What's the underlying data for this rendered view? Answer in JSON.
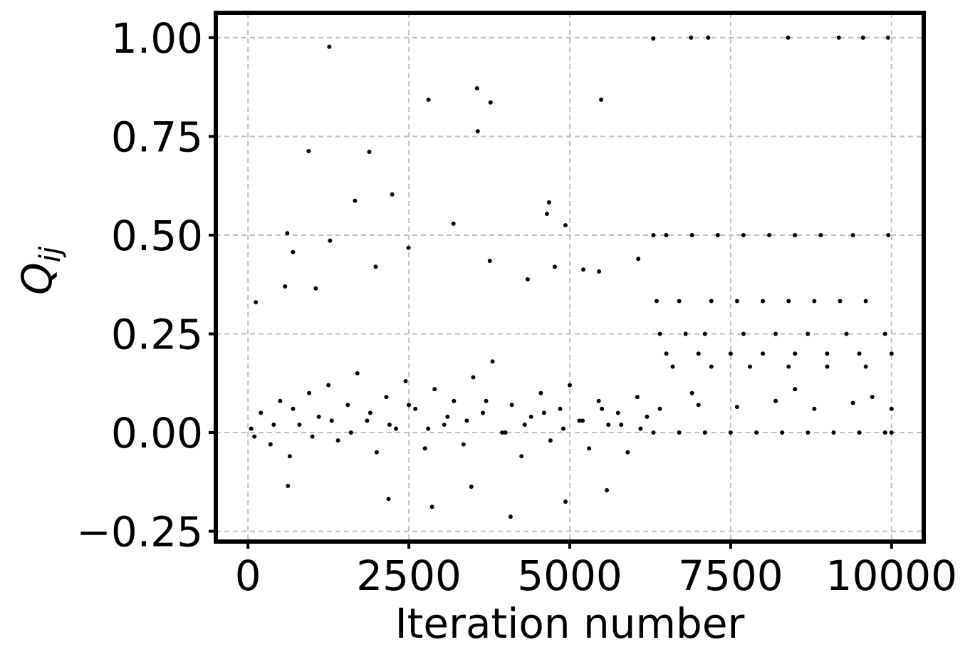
{
  "chart_data": {
    "type": "scatter",
    "xlabel": "Iteration number",
    "ylabel": "Q",
    "ylabel_subscript": "ij",
    "xlim": [
      -500,
      10500
    ],
    "ylim": [
      -0.276,
      1.063
    ],
    "xticks": [
      0,
      2500,
      5000,
      7500,
      10000
    ],
    "yticks": [
      {
        "value": -0.25,
        "label": "−0.25"
      },
      {
        "value": 0,
        "label": "0.00"
      },
      {
        "value": 0.25,
        "label": "0.25"
      },
      {
        "value": 0.5,
        "label": "0.50"
      },
      {
        "value": 0.75,
        "label": "0.75"
      },
      {
        "value": 1,
        "label": "1.00"
      }
    ],
    "grid": true,
    "color": "#000000",
    "x": [
      122,
      1264,
      942,
      610,
      698,
      576,
      1053,
      1275,
      1663,
      1885,
      2240,
      2805,
      3559,
      3570,
      3769,
      3193,
      5488,
      4678,
      4645,
      4933,
      6297,
      6885,
      7151,
      8392,
      9180,
      9557,
      9945,
      2184,
      2860,
      4080,
      4933,
      3470,
      5576,
      621,
      4346,
      4767,
      5211,
      5455,
      6064,
      2494,
      3758,
      1985,
      6300,
      6500,
      6900,
      7300,
      7700,
      8100,
      8500,
      8900,
      9400,
      9950,
      6350,
      6700,
      7200,
      7600,
      8000,
      8400,
      8800,
      9200,
      9600,
      6400,
      6800,
      7100,
      7700,
      8200,
      8700,
      9300,
      9900,
      6500,
      7000,
      7500,
      8000,
      8500,
      9000,
      9500,
      10000,
      6600,
      7200,
      7800,
      8400,
      9000,
      9600,
      6300,
      6700,
      7100,
      7500,
      7900,
      8300,
      8700,
      9100,
      9500,
      9900,
      10000,
      6400,
      7000,
      7600,
      8200,
      8800,
      9400,
      10000,
      6900,
      8500,
      9700,
      50,
      200,
      350,
      500,
      650,
      800,
      950,
      1100,
      1250,
      1400,
      1550,
      1700,
      1850,
      2000,
      2150,
      2300,
      2450,
      2600,
      2750,
      2900,
      3050,
      3200,
      3350,
      3500,
      3650,
      3800,
      3950,
      4100,
      4250,
      4400,
      4550,
      4700,
      4850,
      5000,
      5150,
      5300,
      5450,
      5600,
      5750,
      5900,
      6050,
      6200,
      100,
      400,
      700,
      1000,
      1300,
      1600,
      1900,
      2200,
      2500,
      2800,
      3100,
      3400,
      3700,
      4000,
      4300,
      4600,
      4900,
      5200,
      5500,
      5800,
      6100
    ],
    "values": [
      0.33,
      0.977,
      0.713,
      0.505,
      0.457,
      0.37,
      0.365,
      0.486,
      0.587,
      0.711,
      0.603,
      0.843,
      0.872,
      0.763,
      0.836,
      0.529,
      0.843,
      0.583,
      0.554,
      0.525,
      0.998,
      1.0,
      1.0,
      1.0,
      1.0,
      1.0,
      1.0,
      -0.168,
      -0.188,
      -0.213,
      -0.175,
      -0.137,
      -0.146,
      -0.135,
      0.388,
      0.42,
      0.413,
      0.408,
      0.44,
      0.468,
      0.435,
      0.42,
      0.5,
      0.5,
      0.5,
      0.5,
      0.5,
      0.5,
      0.5,
      0.5,
      0.5,
      0.5,
      0.333,
      0.333,
      0.333,
      0.333,
      0.333,
      0.333,
      0.333,
      0.333,
      0.333,
      0.25,
      0.25,
      0.25,
      0.25,
      0.25,
      0.25,
      0.25,
      0.25,
      0.2,
      0.2,
      0.2,
      0.2,
      0.2,
      0.2,
      0.2,
      0.2,
      0.167,
      0.167,
      0.167,
      0.167,
      0.167,
      0.167,
      0,
      0,
      0,
      0,
      0,
      0,
      0,
      0,
      0,
      0,
      0,
      0.06,
      0.07,
      0.065,
      0.08,
      0.06,
      0.075,
      0.06,
      0.1,
      0.11,
      0.09,
      0.01,
      0.05,
      -0.03,
      0.08,
      -0.06,
      0.02,
      0.1,
      0.04,
      0.12,
      -0.02,
      0.07,
      0.15,
      0.03,
      -0.05,
      0.09,
      0.01,
      0.13,
      0.06,
      -0.04,
      0.11,
      0.02,
      0.08,
      -0.03,
      0.14,
      0.05,
      0.18,
      0.0,
      0.07,
      -0.06,
      0.04,
      0.1,
      -0.02,
      0.06,
      0.12,
      0.03,
      -0.04,
      0.08,
      0.02,
      0.05,
      -0.05,
      0.09,
      0.04,
      -0.01,
      0.02,
      0.06,
      -0.01,
      0.03,
      0.0,
      0.05,
      0.02,
      0.07,
      0.01,
      0.04,
      0.03,
      0.08,
      0.0,
      0.02,
      0.05,
      0.01,
      0.03,
      0.06,
      0.02,
      0.01
    ]
  }
}
